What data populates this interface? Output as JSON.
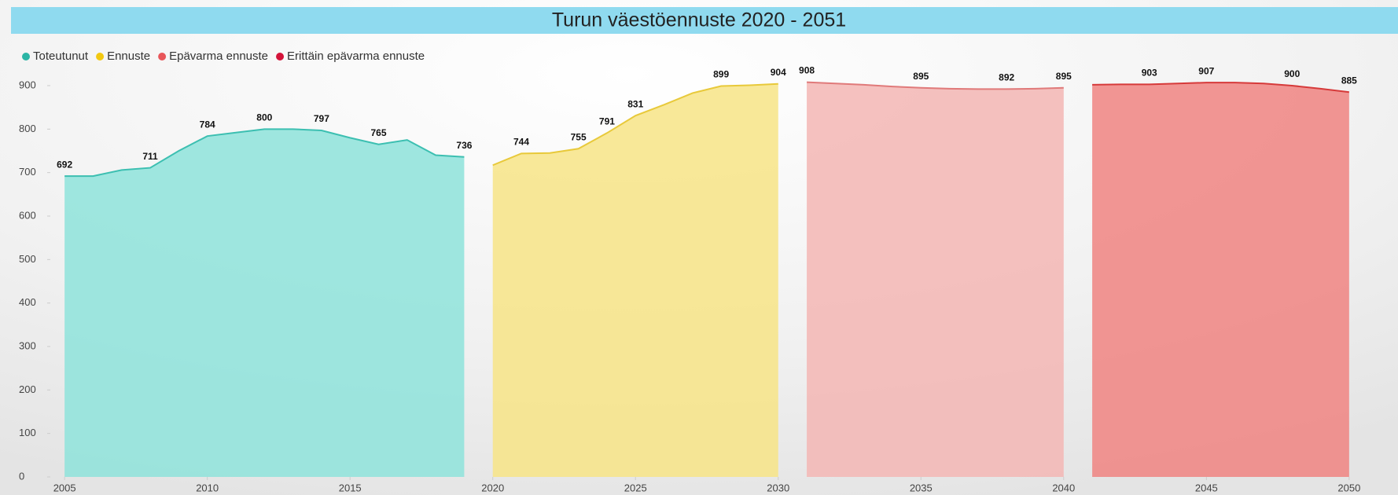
{
  "chart_data": {
    "type": "area",
    "title": "Turun väestöennuste 2020 - 2051",
    "xlim": [
      2004.5,
      2050.5
    ],
    "xticks": [
      2005,
      2010,
      2015,
      2020,
      2025,
      2030,
      2035,
      2040,
      2045,
      2050
    ],
    "ylim": [
      0,
      900
    ],
    "yticks": [
      0,
      100,
      200,
      300,
      400,
      500,
      600,
      700,
      800,
      900
    ],
    "series": [
      {
        "name": "Toteutunut",
        "color": "#2bb5a5",
        "line": "#3cbfb1",
        "fill": "#8ee3da",
        "x": [
          2005,
          2006,
          2007,
          2008,
          2009,
          2010,
          2011,
          2012,
          2013,
          2014,
          2015,
          2016,
          2017,
          2018,
          2019
        ],
        "values": [
          692,
          692,
          706,
          711,
          750,
          784,
          792,
          800,
          800,
          797,
          780,
          765,
          775,
          740,
          736
        ],
        "value_labels": [
          "692",
          null,
          null,
          "711",
          null,
          "784",
          null,
          "800",
          null,
          "797",
          null,
          "765",
          null,
          null,
          "736"
        ]
      },
      {
        "name": "Ennuste",
        "color": "#f2c811",
        "line": "#e8c93a",
        "fill": "#f7e486",
        "x": [
          2020,
          2021,
          2022,
          2023,
          2024,
          2025,
          2026,
          2027,
          2028,
          2029,
          2030
        ],
        "values": [
          717,
          744,
          745,
          755,
          791,
          831,
          856,
          883,
          899,
          901,
          904
        ],
        "value_labels": [
          null,
          "744",
          null,
          "755",
          "791",
          "831",
          null,
          null,
          "899",
          null,
          "904"
        ]
      },
      {
        "name": "Epävarma ennuste",
        "color": "#e8565a",
        "line": "#e07a7a",
        "fill": "#f3b6b4",
        "x": [
          2031,
          2032,
          2033,
          2034,
          2035,
          2036,
          2037,
          2038,
          2039,
          2040
        ],
        "values": [
          908,
          905,
          902,
          898,
          895,
          893,
          892,
          892,
          893,
          895
        ],
        "value_labels": [
          "908",
          null,
          null,
          null,
          "895",
          null,
          null,
          "892",
          null,
          "895"
        ]
      },
      {
        "name": "Erittäin epävarma ennuste",
        "color": "#d4143a",
        "line": "#d63a3a",
        "fill": "#f08481",
        "x": [
          2041,
          2042,
          2043,
          2044,
          2045,
          2046,
          2047,
          2048,
          2049,
          2050
        ],
        "values": [
          902,
          903,
          903,
          905,
          907,
          907,
          905,
          900,
          893,
          885
        ],
        "value_labels": [
          null,
          null,
          "903",
          null,
          "907",
          null,
          null,
          "900",
          null,
          "885"
        ]
      }
    ]
  }
}
